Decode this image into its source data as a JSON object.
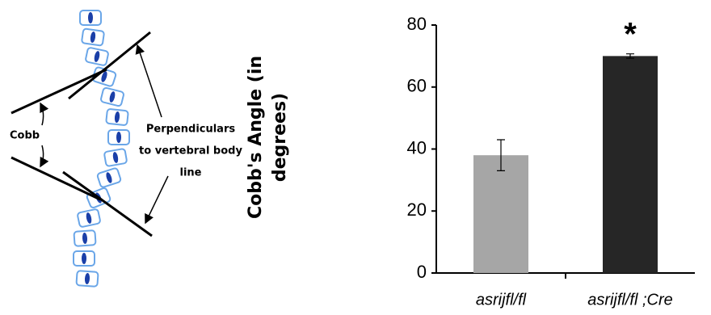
{
  "diagram": {
    "cobb_label": "Cobb",
    "perpendiculars_label": [
      "Perpendiculars",
      "to vertebral body",
      "line"
    ]
  },
  "chart_data": {
    "type": "bar",
    "y_label": "Cobb's Angle (in degrees)",
    "categories": [
      "asrijfl/fl",
      "asrijfl/fl ;Cre"
    ],
    "series": [
      {
        "values": [
          38,
          70
        ],
        "errors": [
          5,
          0.7
        ],
        "colors": [
          "#a6a6a6",
          "#262626"
        ]
      }
    ],
    "annotations": [
      {
        "text": "*",
        "category": 1
      }
    ],
    "ylim": [
      0,
      80
    ],
    "yticks": [
      0,
      20,
      40,
      60,
      80
    ]
  }
}
